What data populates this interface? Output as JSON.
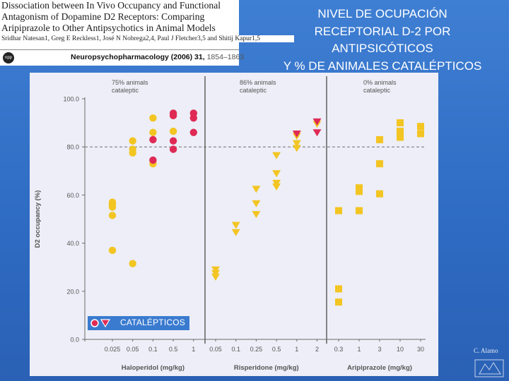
{
  "paper": {
    "title": "Dissociation between In Vivo Occupancy and Functional\nAntagonism of Dopamine D2 Receptors: Comparing\nAripiprazole to Other Antipsychotics in Animal Models",
    "authors": "Sridhar Natesan1, Greg E Reckless1, José N Nobrega2,4, Paul J Fletcher3,5 and Shitij Kapur1,5",
    "journal": "Neuropsychopharmacology (2006) 31,",
    "pages": "1854–1863",
    "logo": "npp"
  },
  "slide_title": "NIVEL DE OCUPACIÓN\nRECEPTORIAL D-2 POR\nANTIPSICÓTICOS\nY % DE ANIMALES CATALÉPTICOS",
  "legend_label": "CATALÉPTICOS",
  "signature": "C. Alamo",
  "colors": {
    "cataleptic": "#df2a55",
    "non_cataleptic": "#f3c522",
    "axis": "#6a6a6a",
    "reference_line": "#707070"
  },
  "chart_data": {
    "type": "scatter",
    "ylabel": "D2 occupancy (%)",
    "ylim": [
      0,
      100
    ],
    "y_ticks": [
      "0.0",
      "20.0",
      "40.0",
      "60.0",
      "80.0",
      "100.0"
    ],
    "reference_y": 80,
    "groups": [
      {
        "drug": "Haloperidol (mg/kg)",
        "marker": "circle",
        "cataleptic_label": "75% animals cataleptic",
        "doses": [
          "0.025",
          "0.05",
          "0.1",
          "0.5",
          "1"
        ],
        "points": [
          {
            "dose": "0.025",
            "occupancy": 57,
            "cataleptic": false
          },
          {
            "dose": "0.025",
            "occupancy": 56,
            "cataleptic": false
          },
          {
            "dose": "0.025",
            "occupancy": 55,
            "cataleptic": false
          },
          {
            "dose": "0.025",
            "occupancy": 51.5,
            "cataleptic": false
          },
          {
            "dose": "0.025",
            "occupancy": 37,
            "cataleptic": false
          },
          {
            "dose": "0.05",
            "occupancy": 82.5,
            "cataleptic": false
          },
          {
            "dose": "0.05",
            "occupancy": 79,
            "cataleptic": false
          },
          {
            "dose": "0.05",
            "occupancy": 77.5,
            "cataleptic": false
          },
          {
            "dose": "0.05",
            "occupancy": 31.5,
            "cataleptic": false
          },
          {
            "dose": "0.1",
            "occupancy": 92,
            "cataleptic": false
          },
          {
            "dose": "0.1",
            "occupancy": 86,
            "cataleptic": false
          },
          {
            "dose": "0.1",
            "occupancy": 83,
            "cataleptic": true
          },
          {
            "dose": "0.1",
            "occupancy": 74.5,
            "cataleptic": true
          },
          {
            "dose": "0.1",
            "occupancy": 73,
            "cataleptic": false
          },
          {
            "dose": "0.5",
            "occupancy": 94,
            "cataleptic": true
          },
          {
            "dose": "0.5",
            "occupancy": 93,
            "cataleptic": true
          },
          {
            "dose": "0.5",
            "occupancy": 86.5,
            "cataleptic": false
          },
          {
            "dose": "0.5",
            "occupancy": 82.5,
            "cataleptic": true
          },
          {
            "dose": "0.5",
            "occupancy": 79,
            "cataleptic": true
          },
          {
            "dose": "1",
            "occupancy": 94,
            "cataleptic": true
          },
          {
            "dose": "1",
            "occupancy": 92,
            "cataleptic": true
          },
          {
            "dose": "1",
            "occupancy": 86,
            "cataleptic": true
          }
        ]
      },
      {
        "drug": "Risperidone (mg/kg)",
        "marker": "triangle",
        "cataleptic_label": "86% animals cataleptic",
        "doses": [
          "0.05",
          "0.1",
          "0.25",
          "0.5",
          "1",
          "2"
        ],
        "points": [
          {
            "dose": "0.05",
            "occupancy": 29,
            "cataleptic": false
          },
          {
            "dose": "0.05",
            "occupancy": 27.5,
            "cataleptic": false
          },
          {
            "dose": "0.05",
            "occupancy": 26,
            "cataleptic": false
          },
          {
            "dose": "0.1",
            "occupancy": 47.5,
            "cataleptic": false
          },
          {
            "dose": "0.1",
            "occupancy": 44.5,
            "cataleptic": false
          },
          {
            "dose": "0.25",
            "occupancy": 62.5,
            "cataleptic": false
          },
          {
            "dose": "0.25",
            "occupancy": 56.5,
            "cataleptic": false
          },
          {
            "dose": "0.25",
            "occupancy": 52,
            "cataleptic": false
          },
          {
            "dose": "0.5",
            "occupancy": 76.5,
            "cataleptic": false
          },
          {
            "dose": "0.5",
            "occupancy": 69,
            "cataleptic": false
          },
          {
            "dose": "0.5",
            "occupancy": 65,
            "cataleptic": false
          },
          {
            "dose": "0.5",
            "occupancy": 63.5,
            "cataleptic": false
          },
          {
            "dose": "1",
            "occupancy": 85.5,
            "cataleptic": true
          },
          {
            "dose": "1",
            "occupancy": 84.5,
            "cataleptic": false
          },
          {
            "dose": "1",
            "occupancy": 81.5,
            "cataleptic": false
          },
          {
            "dose": "1",
            "occupancy": 79.5,
            "cataleptic": false
          },
          {
            "dose": "2",
            "occupancy": 90.5,
            "cataleptic": true
          },
          {
            "dose": "2",
            "occupancy": 89.5,
            "cataleptic": false
          },
          {
            "dose": "2",
            "occupancy": 86,
            "cataleptic": true
          }
        ]
      },
      {
        "drug": "Aripiprazole (mg/kg)",
        "marker": "square",
        "cataleptic_label": "0% animals cataleptic",
        "doses": [
          "0.3",
          "1",
          "3",
          "10",
          "30"
        ],
        "points": [
          {
            "dose": "0.3",
            "occupancy": 53.5,
            "cataleptic": false
          },
          {
            "dose": "0.3",
            "occupancy": 21,
            "cataleptic": false
          },
          {
            "dose": "0.3",
            "occupancy": 15.5,
            "cataleptic": false
          },
          {
            "dose": "1",
            "occupancy": 63,
            "cataleptic": false
          },
          {
            "dose": "1",
            "occupancy": 61.5,
            "cataleptic": false
          },
          {
            "dose": "1",
            "occupancy": 53.5,
            "cataleptic": false
          },
          {
            "dose": "3",
            "occupancy": 83,
            "cataleptic": false
          },
          {
            "dose": "3",
            "occupancy": 73,
            "cataleptic": false
          },
          {
            "dose": "3",
            "occupancy": 60.5,
            "cataleptic": false
          },
          {
            "dose": "10",
            "occupancy": 90,
            "cataleptic": false
          },
          {
            "dose": "10",
            "occupancy": 86.5,
            "cataleptic": false
          },
          {
            "dose": "10",
            "occupancy": 84,
            "cataleptic": false
          },
          {
            "dose": "30",
            "occupancy": 88.5,
            "cataleptic": false
          },
          {
            "dose": "30",
            "occupancy": 85.5,
            "cataleptic": false
          }
        ]
      }
    ]
  }
}
